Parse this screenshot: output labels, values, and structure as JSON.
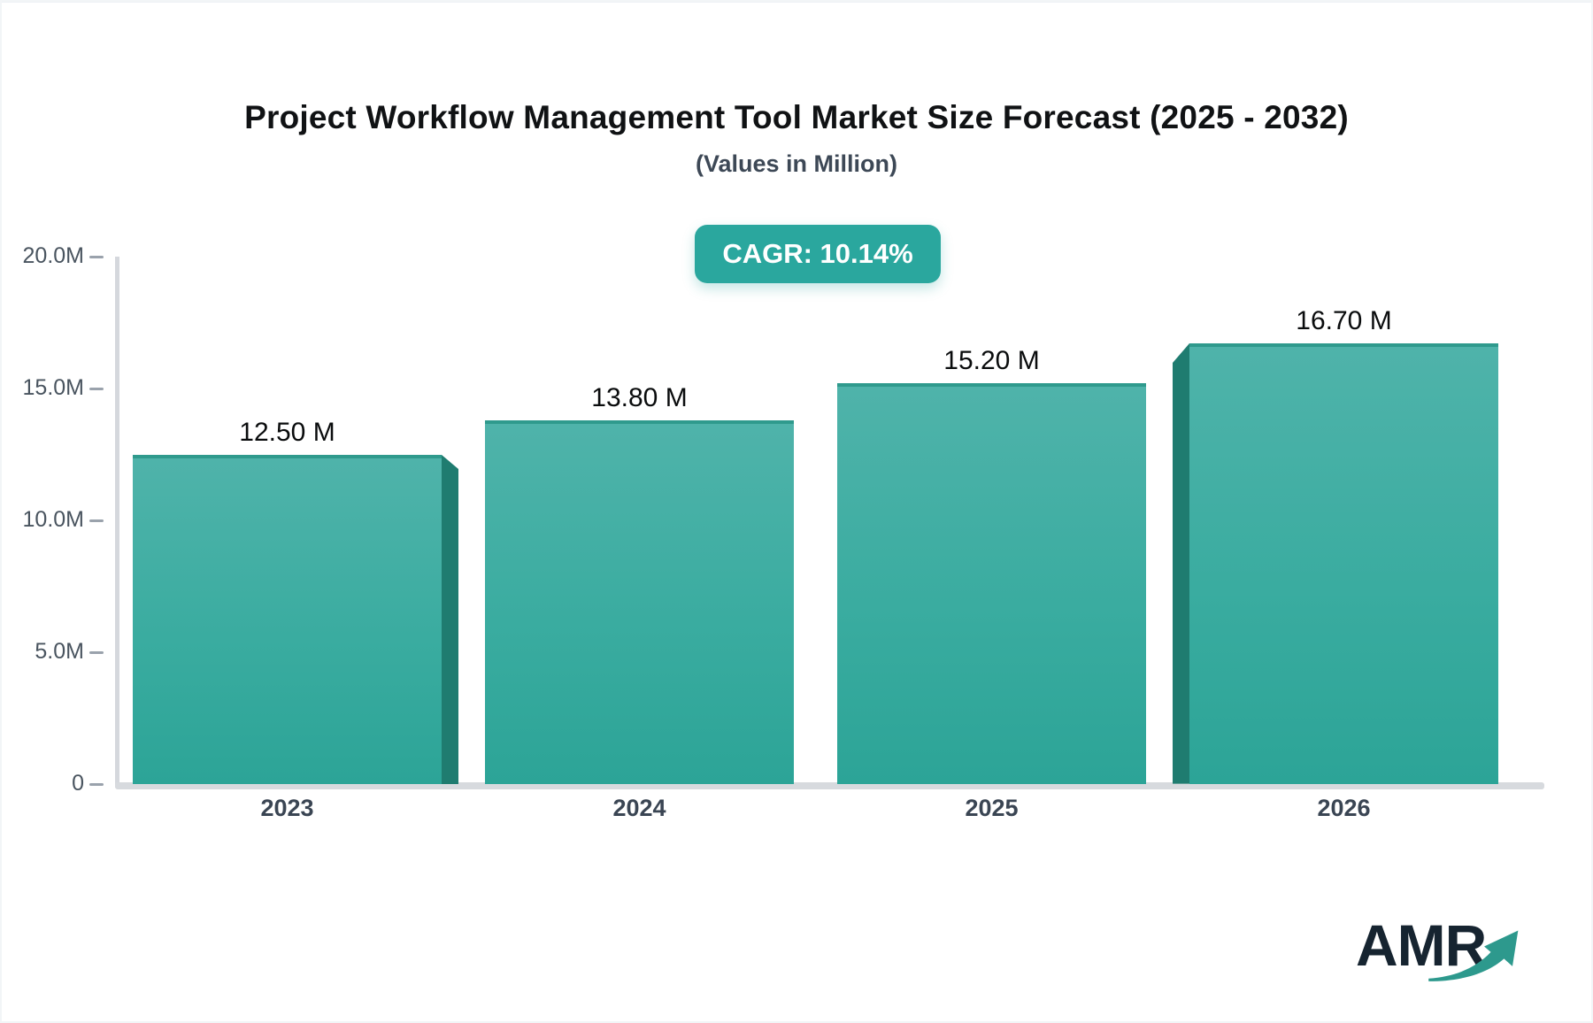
{
  "header": {
    "title": "Project Workflow Management Tool Market Size Forecast (2025 - 2032)",
    "subtitle": "(Values in Million)",
    "cagr_label": "CAGR: 10.14%"
  },
  "logo": {
    "text": "AMR",
    "arrow_icon": "growth-arrow-icon"
  },
  "colors": {
    "badge_bg": "#2aa79e",
    "bar_top": "#4fb3aa",
    "bar_bottom": "#2ca497",
    "bar_top_border": "#2f9a8d",
    "bar_side_3d": "#1f7c70",
    "axis_line": "#d5d8dd",
    "baseline": "#d7dade",
    "tick_dash": "#9aa2ac",
    "ytick_text": "#49545f",
    "xtick_text": "#3a4553",
    "title_text": "#101214",
    "subtitle_text": "#3d4856",
    "logo_text": "#162430",
    "logo_arrow": "#2d998d"
  },
  "chart_data": {
    "type": "bar",
    "title": "Project Workflow Management Tool Market Size Forecast (2025 - 2032)",
    "subtitle": "(Values in Million)",
    "annotation": "CAGR: 10.14%",
    "categories": [
      "2023",
      "2024",
      "2025",
      "2026"
    ],
    "values": [
      12.5,
      13.8,
      15.2,
      16.7
    ],
    "value_labels": [
      "12.50 M",
      "13.80 M",
      "15.20 M",
      "16.70 M"
    ],
    "series_unit": "Million",
    "ylim": [
      0,
      20
    ],
    "yticks": [
      {
        "value": 0,
        "label": "0"
      },
      {
        "value": 5,
        "label": "5.0M"
      },
      {
        "value": 10,
        "label": "10.0M"
      },
      {
        "value": 15,
        "label": "15.0M"
      },
      {
        "value": 20,
        "label": "20.0M"
      }
    ],
    "xlabel": "",
    "ylabel": "",
    "grid": false,
    "legend": false,
    "bar_effect": "3d-side-faces-on-outer-bars"
  }
}
